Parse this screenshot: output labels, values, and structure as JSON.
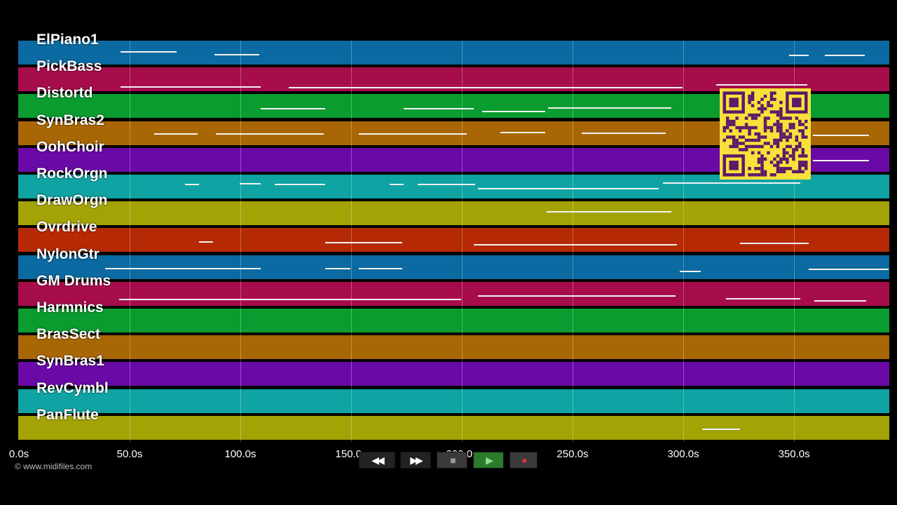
{
  "colors": {
    "background": "#000000",
    "lanes": [
      "#0a6aa1",
      "#a60d4a",
      "#0a9c2e",
      "#a86605",
      "#6a0aa6",
      "#0fa3a3",
      "#a3a305",
      "#b52a05"
    ]
  },
  "tracks": [
    {
      "name": "ElPiano1"
    },
    {
      "name": "PickBass"
    },
    {
      "name": "Distortd"
    },
    {
      "name": "SynBras2"
    },
    {
      "name": "OohChoir"
    },
    {
      "name": "RockOrgn"
    },
    {
      "name": "DrawOrgn"
    },
    {
      "name": "Ovrdrive"
    },
    {
      "name": "NylonGtr"
    },
    {
      "name": "GM Drums"
    },
    {
      "name": "Harmnics"
    },
    {
      "name": "BrasSect"
    },
    {
      "name": "SynBras1"
    },
    {
      "name": "RevCymbl"
    },
    {
      "name": "PanFlute"
    }
  ],
  "timeline": {
    "ticks": [
      "0.0s",
      "50.0s",
      "100.0s",
      "150.0s",
      "200.0s",
      "250.0s",
      "300.0s",
      "350.0s"
    ],
    "duration_seconds": 393
  },
  "credit": "© www.midifiles.com",
  "transport": {
    "buttons": [
      {
        "name": "rewind-button",
        "icon": "rewind-icon",
        "glyph": "◀◀"
      },
      {
        "name": "fast-forward-button",
        "icon": "fast-forward-icon",
        "glyph": "▶▶"
      },
      {
        "name": "stop-button",
        "icon": "stop-icon",
        "glyph": "■"
      },
      {
        "name": "play-button",
        "icon": "play-icon",
        "glyph": "▶"
      },
      {
        "name": "record-button",
        "icon": "record-icon",
        "glyph": "●"
      }
    ]
  },
  "qr_code": {
    "icon": "qr-code-icon",
    "color": "#f7e13a",
    "dark": "#5b1a6a"
  }
}
